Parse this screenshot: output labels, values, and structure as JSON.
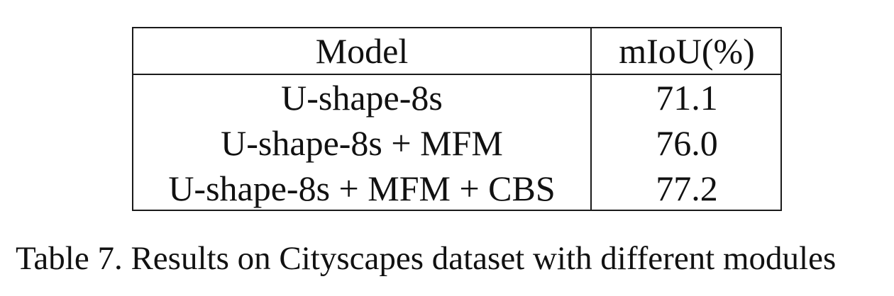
{
  "table": {
    "headers": [
      "Model",
      "mIoU(%)"
    ],
    "rows": [
      [
        "U-shape-8s",
        "71.1"
      ],
      [
        "U-shape-8s + MFM",
        "76.0"
      ],
      [
        "U-shape-8s + MFM + CBS",
        "77.2"
      ]
    ]
  },
  "caption": "Table 7. Results on Cityscapes dataset with different modules"
}
